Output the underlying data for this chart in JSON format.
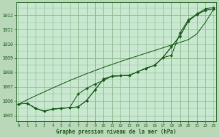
{
  "title": "Graphe pression niveau de la mer (hPa)",
  "bg_color": "#b8d8b8",
  "plot_bg_color": "#c8e8d0",
  "grid_color": "#90b890",
  "line_color": "#1a5c1a",
  "x_ticks": [
    0,
    1,
    2,
    3,
    4,
    5,
    6,
    7,
    8,
    9,
    10,
    11,
    12,
    13,
    14,
    15,
    16,
    17,
    18,
    19,
    20,
    21,
    22,
    23
  ],
  "y_ticks": [
    1005,
    1006,
    1007,
    1008,
    1009,
    1010,
    1011,
    1012
  ],
  "ylim": [
    1004.6,
    1012.9
  ],
  "xlim": [
    -0.3,
    23.3
  ],
  "series_with_markers": [
    [
      1005.8,
      1005.85,
      1005.5,
      1005.3,
      1005.45,
      1005.5,
      1005.55,
      1005.6,
      1006.05,
      1006.8,
      1007.55,
      1007.75,
      1007.78,
      1007.8,
      1008.05,
      1008.3,
      1008.5,
      1009.05,
      1009.8,
      1010.55,
      1011.6,
      1012.05,
      1012.35,
      1012.45
    ],
    [
      1005.8,
      1005.85,
      1005.5,
      1005.3,
      1005.45,
      1005.5,
      1005.55,
      1006.5,
      1006.9,
      1007.2,
      1007.45,
      1007.75,
      1007.78,
      1007.8,
      1008.05,
      1008.3,
      1008.5,
      1009.05,
      1009.2,
      1010.75,
      1011.7,
      1012.05,
      1012.35,
      1012.45
    ],
    [
      1005.8,
      1005.85,
      1005.5,
      1005.3,
      1005.45,
      1005.5,
      1005.55,
      1005.6,
      1006.05,
      1006.8,
      1007.55,
      1007.75,
      1007.78,
      1007.8,
      1008.05,
      1008.3,
      1008.5,
      1009.05,
      1009.8,
      1010.55,
      1011.6,
      1012.1,
      1012.45,
      1012.55
    ]
  ],
  "straight_line": [
    1005.8,
    1006.1,
    1006.38,
    1006.65,
    1006.92,
    1007.18,
    1007.44,
    1007.68,
    1007.92,
    1008.14,
    1008.36,
    1008.57,
    1008.77,
    1008.97,
    1009.16,
    1009.35,
    1009.54,
    1009.73,
    1009.92,
    1010.1,
    1010.3,
    1010.7,
    1011.5,
    1012.45
  ]
}
